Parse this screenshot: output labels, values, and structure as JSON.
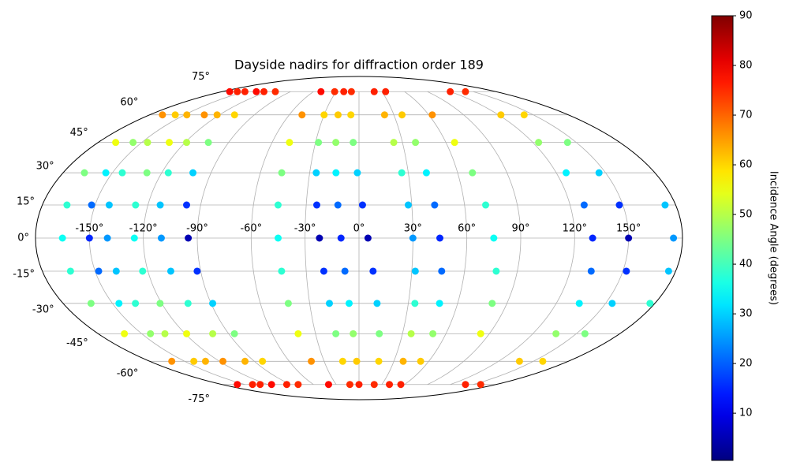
{
  "chart_data": {
    "type": "scatter",
    "projection": "mollweide",
    "colormap": "jet",
    "title": "Dayside nadirs for diffraction order 189",
    "colorbar_label": "Incidence Angle (degrees)",
    "clim": [
      0.5,
      90
    ],
    "colorbar_ticks": [
      10,
      20,
      30,
      40,
      50,
      60,
      70,
      80,
      90
    ],
    "grid": true,
    "xticks": [
      {
        "value": -150,
        "label": "-150°"
      },
      {
        "value": -120,
        "label": "-120°"
      },
      {
        "value": -90,
        "label": "-90°"
      },
      {
        "value": -60,
        "label": "-60°"
      },
      {
        "value": -30,
        "label": "-30°"
      },
      {
        "value": 0,
        "label": "0°"
      },
      {
        "value": 30,
        "label": "30°"
      },
      {
        "value": 60,
        "label": "60°"
      },
      {
        "value": 90,
        "label": "90°"
      },
      {
        "value": 120,
        "label": "120°"
      },
      {
        "value": 150,
        "label": "150°"
      }
    ],
    "yticks": [
      {
        "value": -75,
        "label": "-75°"
      },
      {
        "value": -60,
        "label": "-60°"
      },
      {
        "value": -45,
        "label": "-45°"
      },
      {
        "value": -30,
        "label": "-30°"
      },
      {
        "value": -15,
        "label": "-15°"
      },
      {
        "value": 0,
        "label": "0°"
      },
      {
        "value": 15,
        "label": "15°"
      },
      {
        "value": 30,
        "label": "30°"
      },
      {
        "value": 45,
        "label": "45°"
      },
      {
        "value": 60,
        "label": "60°"
      },
      {
        "value": 75,
        "label": "75°"
      }
    ],
    "series": [
      {
        "lon": [
          -170,
          -169,
          -168,
          -167,
          -166,
          -165,
          -164,
          -163,
          -162,
          -161,
          -160
        ],
        "lat": [
          75,
          60,
          45,
          30,
          15,
          0,
          -15,
          -30,
          -45,
          -60,
          -75
        ],
        "incidence": [
          78,
          66,
          55,
          45,
          38,
          35,
          38,
          45,
          55,
          66,
          78
        ]
      },
      {
        "lon": [
          -160,
          -158,
          -156,
          -154,
          -152,
          -150,
          -148,
          -146,
          -144,
          -142,
          -140
        ],
        "lat": [
          75,
          60,
          45,
          30,
          15,
          0,
          -15,
          -30,
          -45,
          -60,
          -75
        ],
        "incidence": [
          76,
          61,
          47,
          33,
          21,
          15,
          21,
          33,
          47,
          61,
          76
        ]
      },
      {
        "lon": [
          -150,
          -148,
          -146,
          -144,
          -142,
          -140,
          -138,
          -136,
          -134,
          -132,
          -130
        ],
        "lat": [
          75,
          60,
          45,
          30,
          15,
          0,
          -15,
          -30,
          -45,
          -60,
          -75
        ],
        "incidence": [
          76,
          63,
          50,
          38,
          29,
          25,
          29,
          38,
          50,
          63,
          76
        ]
      },
      {
        "lon": [
          -135,
          -133,
          -131,
          -129,
          -127,
          -125,
          -123,
          -121,
          -119,
          -117,
          -115
        ],
        "lat": [
          75,
          60,
          45,
          30,
          15,
          0,
          -15,
          -30,
          -45,
          -60,
          -75
        ],
        "incidence": [
          78,
          66,
          55,
          45,
          38,
          35,
          38,
          45,
          55,
          66,
          78
        ]
      },
      {
        "lon": [
          -125,
          -122,
          -119,
          -116,
          -113,
          -110,
          -107,
          -104,
          -101,
          -98,
          -95
        ],
        "lat": [
          75,
          60,
          45,
          30,
          15,
          0,
          -15,
          -30,
          -45,
          -60,
          -75
        ],
        "incidence": [
          76,
          63,
          50,
          38,
          29,
          25,
          29,
          38,
          50,
          63,
          76
        ]
      },
      {
        "lon": [
          -110,
          -107,
          -104,
          -101,
          -98,
          -95,
          -92,
          -89,
          -86,
          -83,
          -80
        ],
        "lat": [
          75,
          60,
          45,
          30,
          15,
          0,
          -15,
          -30,
          -45,
          -60,
          -75
        ],
        "incidence": [
          75,
          60,
          45,
          30,
          16,
          5,
          16,
          30,
          45,
          60,
          75
        ]
      },
      {
        "lon": [
          -50,
          -49,
          -48,
          -47,
          -46,
          -45,
          -44,
          -43,
          -42,
          -41,
          -40
        ],
        "lat": [
          75,
          60,
          45,
          30,
          15,
          0,
          -15,
          -30,
          -45,
          -60,
          -75
        ],
        "incidence": [
          78,
          66,
          55,
          45,
          38,
          35,
          38,
          45,
          55,
          66,
          78
        ]
      },
      {
        "lon": [
          -32,
          -30,
          -28,
          -26,
          -24,
          -22,
          -20,
          -18,
          -16,
          -14,
          -12
        ],
        "lat": [
          75,
          60,
          45,
          30,
          15,
          0,
          -15,
          -30,
          -45,
          -60,
          -75
        ],
        "incidence": [
          75,
          60,
          45,
          30,
          16,
          5,
          16,
          30,
          45,
          60,
          75
        ]
      },
      {
        "lon": [
          -20,
          -18,
          -16,
          -14,
          -12,
          -10,
          -8,
          -6,
          -4,
          -2,
          0
        ],
        "lat": [
          75,
          60,
          45,
          30,
          15,
          0,
          -15,
          -30,
          -45,
          -60,
          -75
        ],
        "incidence": [
          76,
          61,
          47,
          33,
          21,
          15,
          21,
          33,
          47,
          61,
          76
        ]
      },
      {
        "lon": [
          -10,
          -7,
          -4,
          -1,
          2,
          5,
          8,
          11,
          14,
          17,
          20
        ],
        "lat": [
          75,
          60,
          45,
          30,
          15,
          0,
          -15,
          -30,
          -45,
          -60,
          -75
        ],
        "incidence": [
          75,
          60,
          45,
          30,
          16,
          5,
          16,
          30,
          45,
          60,
          75
        ]
      },
      {
        "lon": [
          20,
          22,
          24,
          26,
          28,
          30,
          32,
          34,
          36,
          38,
          40
        ],
        "lat": [
          75,
          60,
          45,
          30,
          15,
          0,
          -15,
          -30,
          -45,
          -60,
          -75
        ],
        "incidence": [
          76,
          63,
          50,
          38,
          29,
          25,
          29,
          38,
          50,
          63,
          76
        ]
      },
      {
        "lon": [
          35,
          37,
          39,
          41,
          43,
          45,
          47,
          49,
          51,
          53,
          55
        ],
        "lat": [
          75,
          60,
          45,
          30,
          15,
          0,
          -15,
          -30,
          -45,
          -60,
          -75
        ],
        "incidence": [
          76,
          61,
          47,
          33,
          21,
          15,
          21,
          33,
          47,
          61,
          76
        ]
      },
      {
        "lon": [
          63,
          66,
          69,
          72,
          75,
          78,
          81,
          84
        ],
        "lat": [
          60,
          45,
          30,
          15,
          0,
          -15,
          -30,
          -45
        ],
        "incidence": [
          66,
          55,
          45,
          38,
          35,
          38,
          45,
          55
        ]
      },
      {
        "lon": [
          120,
          122,
          124,
          126,
          128,
          130,
          132,
          134,
          136,
          138,
          140
        ],
        "lat": [
          75,
          60,
          45,
          30,
          15,
          0,
          -15,
          -30,
          -45,
          -60,
          -75
        ],
        "incidence": [
          76,
          61,
          47,
          33,
          21,
          15,
          21,
          33,
          47,
          61,
          76
        ]
      },
      {
        "lon": [
          140,
          142,
          144,
          146,
          148,
          150,
          152,
          154,
          156,
          158,
          160
        ],
        "lat": [
          75,
          60,
          45,
          30,
          15,
          0,
          -15,
          -30,
          -45,
          -60,
          -75
        ],
        "incidence": [
          75,
          60,
          45,
          30,
          16,
          5,
          16,
          30,
          45,
          60,
          75
        ]
      },
      {
        "lon": [
          174,
          175,
          176,
          177
        ],
        "lat": [
          15,
          0,
          -15,
          -30
        ],
        "incidence": [
          29,
          25,
          29,
          38
        ]
      }
    ]
  }
}
